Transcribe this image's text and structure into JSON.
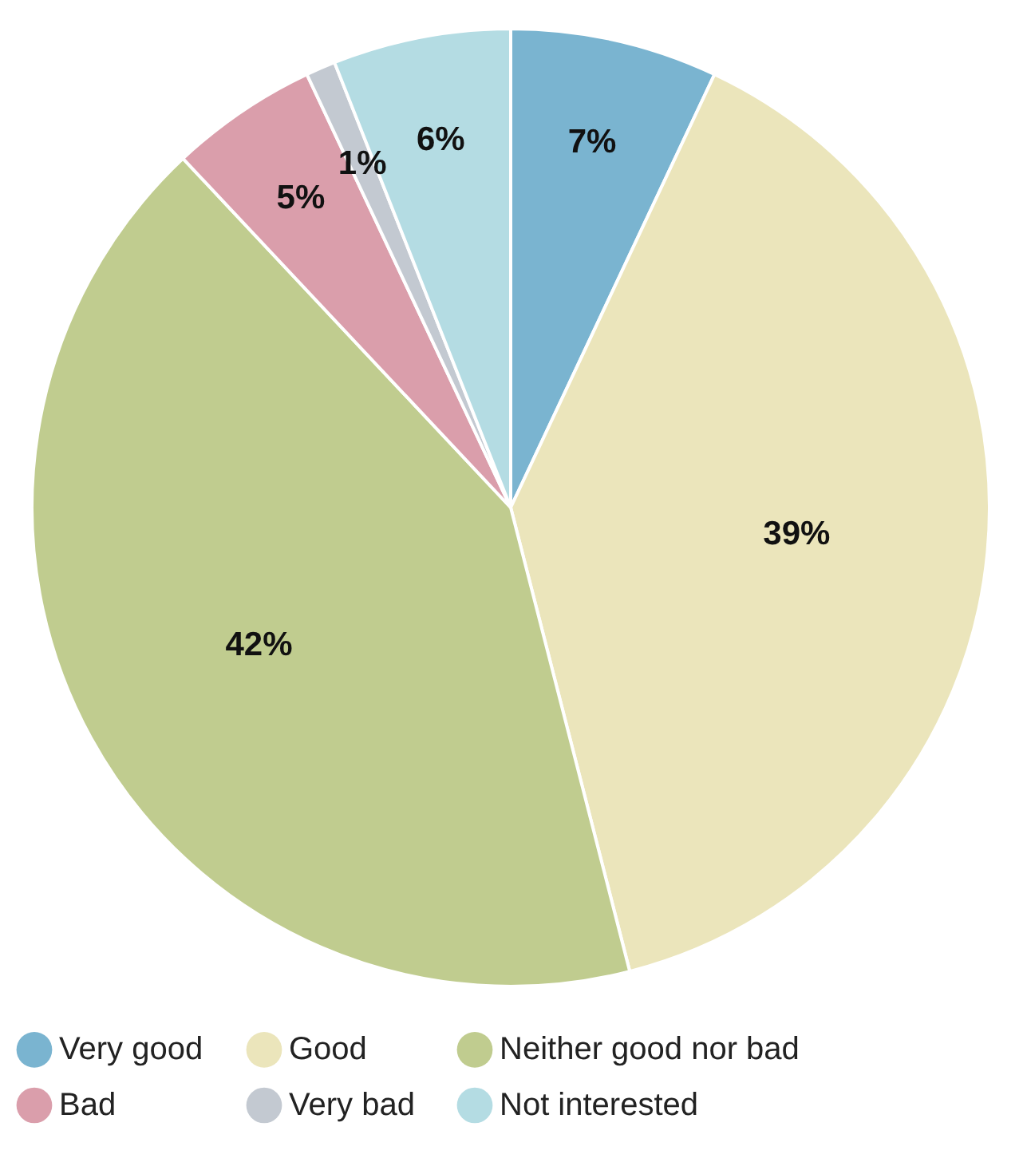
{
  "chart_data": {
    "type": "pie",
    "categories": [
      "Very good",
      "Good",
      "Neither good nor bad",
      "Bad",
      "Very bad",
      "Not interested"
    ],
    "values": [
      7,
      39,
      42,
      5,
      1,
      6
    ],
    "value_labels": [
      "7%",
      "39%",
      "42%",
      "5%",
      "1%",
      "6%"
    ],
    "colors": [
      "#7ab4d0",
      "#ebe5bb",
      "#c0cc8f",
      "#da9eab",
      "#c3c9d1",
      "#b4dce3"
    ],
    "legend": "bottom"
  }
}
